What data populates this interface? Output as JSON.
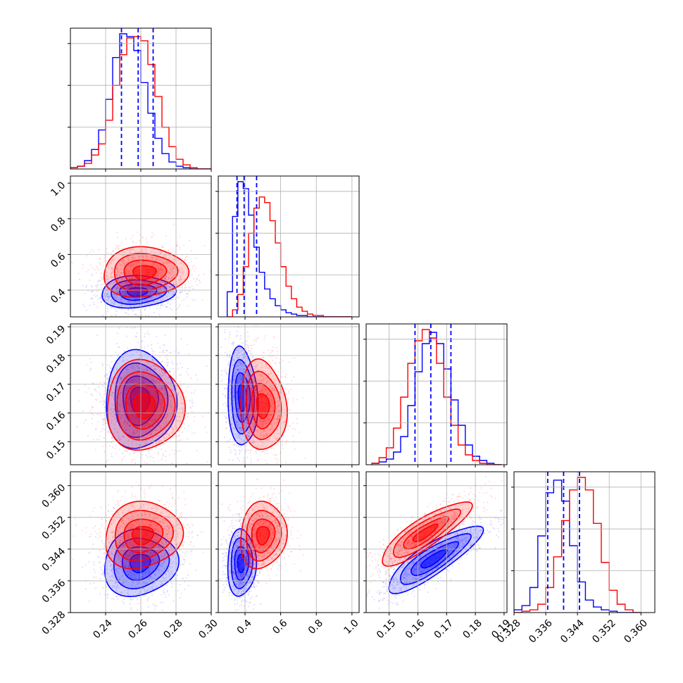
{
  "chart_data": {
    "type": "corner",
    "colors": {
      "series_a": "#0000ff",
      "series_b": "#ff0000",
      "grid": "#b0b0b0",
      "frame": "#000000"
    },
    "series": [
      {
        "color": "#0000ff",
        "quantile_lines": {
          "p0": [
            0.249,
            0.2585,
            0.267
          ],
          "p1": [
            0.355,
            0.395,
            0.465
          ],
          "p2": [
            0.159,
            0.1645,
            0.1715
          ],
          "p3": [
            0.3365,
            0.3405,
            0.3445
          ]
        }
      },
      {
        "color": "#ff0000"
      }
    ],
    "params": [
      {
        "axis": {
          "min": 0.22,
          "max": 0.3
        },
        "ticks": [
          0.24,
          0.26,
          0.28,
          0.3
        ],
        "tick_labels": [
          "0.24",
          "0.26",
          "0.28",
          "0.30"
        ]
      },
      {
        "axis": {
          "min": 0.25,
          "max": 1.04
        },
        "ticks": [
          0.4,
          0.6,
          0.8,
          1.0
        ],
        "tick_labels": [
          "0.4",
          "0.6",
          "0.8",
          "1.0"
        ]
      },
      {
        "axis": {
          "min": 0.142,
          "max": 0.191
        },
        "ticks": [
          0.15,
          0.16,
          0.17,
          0.18,
          0.19
        ],
        "tick_labels": [
          "0.15",
          "0.16",
          "0.17",
          "0.18",
          "0.19"
        ]
      },
      {
        "axis": {
          "min": 0.328,
          "max": 0.3635
        },
        "ticks": [
          0.328,
          0.336,
          0.344,
          0.352,
          0.36
        ],
        "tick_labels": [
          "0.328",
          "0.336",
          "0.344",
          "0.352",
          "0.360"
        ]
      }
    ],
    "histograms": [
      {
        "param": 0,
        "bins": [
          0.22,
          0.224,
          0.228,
          0.232,
          0.236,
          0.24,
          0.244,
          0.248,
          0.252,
          0.256,
          0.26,
          0.264,
          0.268,
          0.272,
          0.276,
          0.28,
          0.284,
          0.288,
          0.292,
          0.296,
          0.3
        ],
        "blue": [
          0.01,
          0.02,
          0.06,
          0.14,
          0.28,
          0.5,
          0.8,
          0.97,
          0.95,
          0.85,
          0.62,
          0.4,
          0.22,
          0.11,
          0.05,
          0.02,
          0.01,
          0.0,
          0.0,
          0.0
        ],
        "red": [
          0.01,
          0.02,
          0.04,
          0.1,
          0.18,
          0.35,
          0.6,
          0.82,
          0.94,
          0.95,
          0.92,
          0.75,
          0.52,
          0.3,
          0.16,
          0.07,
          0.03,
          0.01,
          0.0,
          0.0
        ]
      },
      {
        "param": 1,
        "bins": [
          0.3,
          0.33,
          0.36,
          0.39,
          0.42,
          0.45,
          0.48,
          0.51,
          0.54,
          0.57,
          0.6,
          0.63,
          0.66,
          0.69,
          0.72,
          0.75,
          0.78,
          0.81,
          0.84,
          0.87,
          0.9,
          0.95,
          1.0
        ],
        "blue": [
          0.18,
          0.72,
          0.97,
          0.92,
          0.73,
          0.5,
          0.32,
          0.2,
          0.13,
          0.08,
          0.05,
          0.03,
          0.02,
          0.01,
          0.01,
          0.0,
          0.0,
          0.0,
          0.0,
          0.0,
          0.0,
          0.0
        ],
        "red": [
          0.0,
          0.05,
          0.16,
          0.36,
          0.6,
          0.78,
          0.86,
          0.82,
          0.69,
          0.53,
          0.36,
          0.22,
          0.13,
          0.07,
          0.04,
          0.02,
          0.01,
          0.01,
          0.0,
          0.0,
          0.0,
          0.0
        ]
      },
      {
        "param": 2,
        "bins": [
          0.144,
          0.1465,
          0.149,
          0.1515,
          0.154,
          0.1565,
          0.159,
          0.1615,
          0.164,
          0.1665,
          0.169,
          0.1715,
          0.174,
          0.1765,
          0.179,
          0.1815,
          0.184,
          0.1865,
          0.189
        ],
        "blue": [
          0.01,
          0.02,
          0.04,
          0.09,
          0.2,
          0.42,
          0.66,
          0.86,
          0.94,
          0.86,
          0.68,
          0.46,
          0.28,
          0.14,
          0.06,
          0.03,
          0.01,
          0.0
        ],
        "red": [
          0.01,
          0.05,
          0.12,
          0.26,
          0.48,
          0.72,
          0.88,
          0.96,
          0.9,
          0.72,
          0.48,
          0.28,
          0.14,
          0.07,
          0.03,
          0.01,
          0.0,
          0.0
        ]
      },
      {
        "param": 3,
        "bins": [
          0.328,
          0.33,
          0.332,
          0.334,
          0.336,
          0.338,
          0.34,
          0.342,
          0.344,
          0.346,
          0.348,
          0.35,
          0.352,
          0.354,
          0.356,
          0.358,
          0.36
        ],
        "blue": [
          0.02,
          0.05,
          0.18,
          0.55,
          0.86,
          0.95,
          0.8,
          0.48,
          0.22,
          0.09,
          0.04,
          0.02,
          0.01,
          0.0,
          0.0,
          0.0
        ],
        "red": [
          0.0,
          0.01,
          0.02,
          0.06,
          0.18,
          0.4,
          0.66,
          0.88,
          0.97,
          0.88,
          0.64,
          0.36,
          0.16,
          0.06,
          0.02,
          0.0
        ]
      }
    ],
    "pairs": [
      {
        "x": 0,
        "y": 1,
        "blue": {
          "mean": [
            0.258,
            0.39
          ],
          "sd": [
            0.0105,
            0.045
          ],
          "rho": 0.1
        },
        "red": {
          "mean": [
            0.262,
            0.5
          ],
          "sd": [
            0.012,
            0.07
          ],
          "rho": 0.05
        }
      },
      {
        "x": 0,
        "y": 2,
        "blue": {
          "mean": [
            0.2595,
            0.1645
          ],
          "sd": [
            0.01,
            0.0085
          ],
          "rho": 0.0
        },
        "red": {
          "mean": [
            0.262,
            0.1625
          ],
          "sd": [
            0.011,
            0.0078
          ],
          "rho": 0.0
        }
      },
      {
        "x": 1,
        "y": 2,
        "blue": {
          "mean": [
            0.385,
            0.1655
          ],
          "sd": [
            0.042,
            0.0085
          ],
          "rho": -0.1
        },
        "red": {
          "mean": [
            0.5,
            0.1625
          ],
          "sd": [
            0.065,
            0.0078
          ],
          "rho": -0.1
        }
      },
      {
        "x": 0,
        "y": 3,
        "blue": {
          "mean": [
            0.2595,
            0.3405
          ],
          "sd": [
            0.0105,
            0.0042
          ],
          "rho": 0.1
        },
        "red": {
          "mean": [
            0.261,
            0.3475
          ],
          "sd": [
            0.011,
            0.0042
          ],
          "rho": 0.1
        }
      },
      {
        "x": 1,
        "y": 3,
        "blue": {
          "mean": [
            0.38,
            0.3405
          ],
          "sd": [
            0.04,
            0.0042
          ],
          "rho": 0.05
        },
        "red": {
          "mean": [
            0.5,
            0.3475
          ],
          "sd": [
            0.065,
            0.0042
          ],
          "rho": 0.1
        }
      },
      {
        "x": 2,
        "y": 3,
        "blue": {
          "mean": [
            0.1655,
            0.3415
          ],
          "sd": [
            0.0082,
            0.0042
          ],
          "rho": 0.85
        },
        "red": {
          "mean": [
            0.1625,
            0.348
          ],
          "sd": [
            0.0078,
            0.004
          ],
          "rho": 0.85
        }
      }
    ],
    "grid": true,
    "legend": "none"
  }
}
